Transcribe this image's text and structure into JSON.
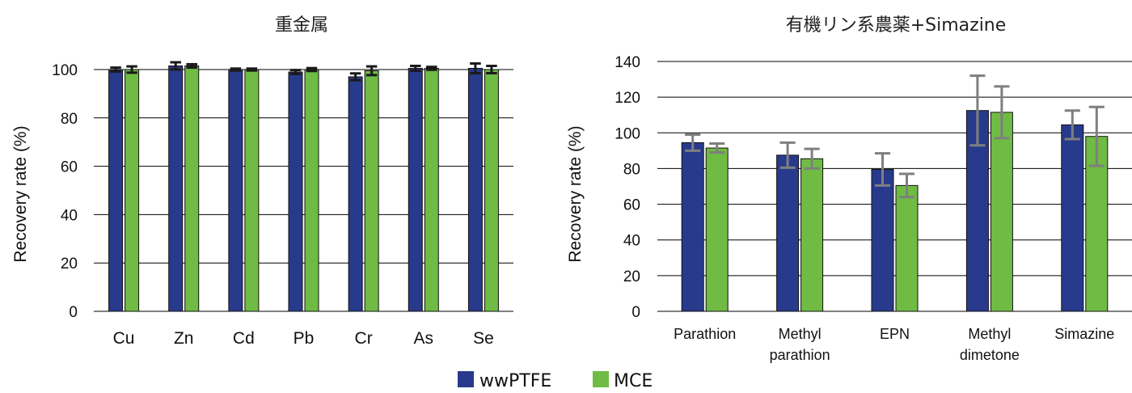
{
  "legend": {
    "position": "bottom-center",
    "items": [
      {
        "label": "wwPTFE",
        "color": "#283a8c"
      },
      {
        "label": "MCE",
        "color": "#6fbb44"
      }
    ]
  },
  "colors": {
    "wwPTFE": "#283a8c",
    "MCE": "#6fbb44",
    "error_bar_left": "#1a1a1a",
    "error_bar_right": "#7f7f7f",
    "grid": "#000000"
  },
  "chart_data": [
    {
      "type": "bar",
      "title": "重金属",
      "xlabel": "",
      "ylabel": "Recovery rate (%)",
      "ylim": [
        0,
        100
      ],
      "yticks": [
        0,
        20,
        40,
        60,
        80,
        100
      ],
      "grid": true,
      "categories": [
        [
          "Cu"
        ],
        [
          "Zn"
        ],
        [
          "Cd"
        ],
        [
          "Pb"
        ],
        [
          "Cr"
        ],
        [
          "As"
        ],
        [
          "Se"
        ]
      ],
      "series": [
        {
          "name": "wwPTFE",
          "values": [
            100,
            101.5,
            100,
            99,
            97,
            100.5,
            100.5
          ],
          "errors": [
            0.8,
            1.5,
            0.4,
            0.8,
            1.4,
            1.0,
            2.0
          ]
        },
        {
          "name": "MCE",
          "values": [
            100,
            101.5,
            100,
            100,
            99.5,
            100.5,
            100
          ],
          "errors": [
            1.3,
            0.7,
            0.4,
            0.6,
            1.8,
            0.6,
            1.5
          ]
        }
      ]
    },
    {
      "type": "bar",
      "title": "有機リン系農薬+Simazine",
      "xlabel": "",
      "ylabel": "Recovery rate (%)",
      "ylim": [
        0,
        140
      ],
      "yticks": [
        0,
        20,
        40,
        60,
        80,
        100,
        120,
        140
      ],
      "grid": true,
      "categories": [
        [
          "Parathion"
        ],
        [
          "Methyl",
          "parathion"
        ],
        [
          "EPN"
        ],
        [
          "Methyl",
          "dimetone"
        ],
        [
          "Simazine"
        ]
      ],
      "series": [
        {
          "name": "wwPTFE",
          "values": [
            94.5,
            87.5,
            79.5,
            112.5,
            104.5
          ],
          "errors": [
            4.5,
            7.0,
            9.0,
            19.5,
            8.0
          ]
        },
        {
          "name": "MCE",
          "values": [
            91.5,
            85.5,
            70.5,
            111.5,
            98
          ],
          "errors": [
            2.5,
            5.5,
            6.5,
            14.5,
            16.5
          ]
        }
      ]
    }
  ]
}
